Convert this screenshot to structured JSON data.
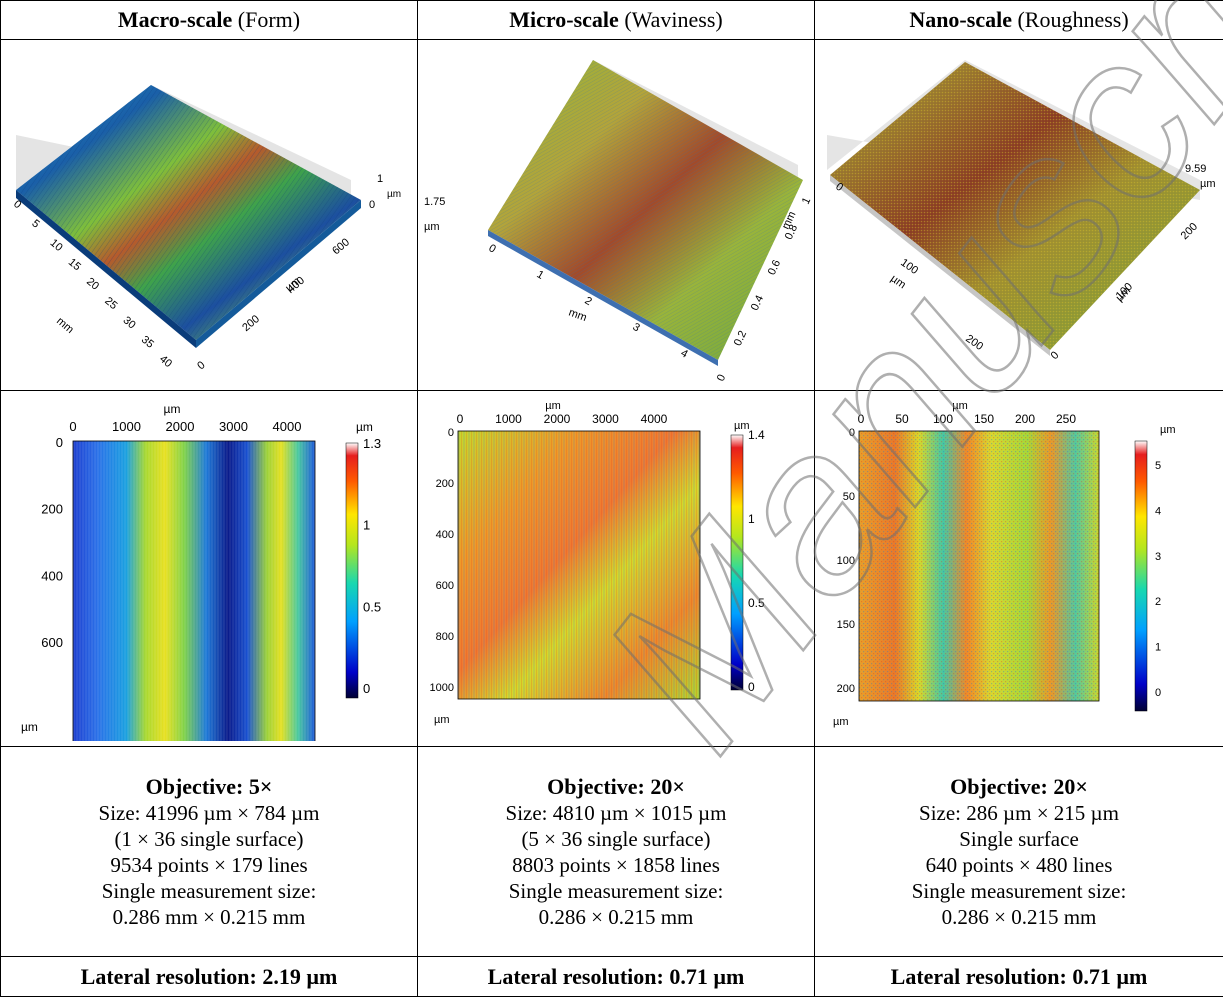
{
  "columns": [
    {
      "title_bold": "Macro-scale",
      "title_rest": " (Form)",
      "surface3d": {
        "z_max": "1",
        "z_zero": "0",
        "z_unit": "µm",
        "x_ticks": [
          "0",
          "5",
          "10",
          "15",
          "20",
          "25",
          "30",
          "35",
          "40"
        ],
        "x_unit": "mm",
        "y_ticks": [
          "0",
          "200",
          "400",
          "600"
        ],
        "y_unit": "µm"
      },
      "map": {
        "top_unit": "µm",
        "x_ticks": [
          "0",
          "1000",
          "2000",
          "3000",
          "4000"
        ],
        "y_ticks": [
          "0",
          "200",
          "400",
          "600"
        ],
        "y_unit": "µm",
        "cb_unit": "µm",
        "cb_ticks": [
          "1.3",
          "1",
          "0.5",
          "0"
        ]
      },
      "spec": {
        "objective": "Objective: 5×",
        "size": "Size: 41996 µm × 784 µm",
        "surface": "(1 × 36 single surface)",
        "points": "9534 points × 179 lines",
        "single_label": "Single measurement size:",
        "single_value": "0.286 mm × 0.215 mm"
      },
      "lateral": "Lateral resolution: 2.19 µm"
    },
    {
      "title_bold": "Micro-scale",
      "title_rest": " (Waviness)",
      "surface3d": {
        "z_max": "1.75",
        "z_unit": "µm",
        "x_ticks": [
          "0",
          "1",
          "2",
          "3",
          "4"
        ],
        "x_unit": "mm",
        "y_ticks": [
          "0",
          "0.2",
          "0.4",
          "0.6",
          "0.8",
          "1"
        ],
        "y_unit": "mm"
      },
      "map": {
        "top_unit": "µm",
        "x_ticks": [
          "0",
          "1000",
          "2000",
          "3000",
          "4000"
        ],
        "y_ticks": [
          "0",
          "200",
          "400",
          "600",
          "800",
          "1000"
        ],
        "y_unit": "µm",
        "cb_unit": "µm",
        "cb_ticks": [
          "1.4",
          "1",
          "0.5",
          "0"
        ]
      },
      "spec": {
        "objective": "Objective: 20×",
        "size": "Size: 4810 µm × 1015 µm",
        "surface": "(5 × 36 single surface)",
        "points": "8803 points × 1858 lines",
        "single_label": "Single measurement size:",
        "single_value": "0.286 × 0.215 mm"
      },
      "lateral": "Lateral resolution: 0.71 µm"
    },
    {
      "title_bold": "Nano-scale",
      "title_rest": " (Roughness)",
      "surface3d": {
        "z_max": "9.59",
        "z_unit": "µm",
        "x_ticks": [
          "0",
          "100",
          "200"
        ],
        "x_unit": "µm",
        "y_ticks": [
          "0",
          "100",
          "200"
        ],
        "y_unit": "µm"
      },
      "map": {
        "top_unit": "µm",
        "x_ticks": [
          "0",
          "50",
          "100",
          "150",
          "200",
          "250"
        ],
        "y_ticks": [
          "0",
          "50",
          "100",
          "150",
          "200"
        ],
        "y_unit": "µm",
        "cb_unit": "µm",
        "cb_ticks": [
          "5",
          "4",
          "3",
          "2",
          "1",
          "0"
        ]
      },
      "spec": {
        "objective": "Objective: 20×",
        "size": "Size: 286 µm × 215 µm",
        "surface": "Single surface",
        "points": "640 points × 480 lines",
        "single_label": "Single measurement size:",
        "single_value": "0.286 × 0.215 mm"
      },
      "lateral": "Lateral resolution: 0.71 µm"
    }
  ],
  "watermark": "Manuscript"
}
